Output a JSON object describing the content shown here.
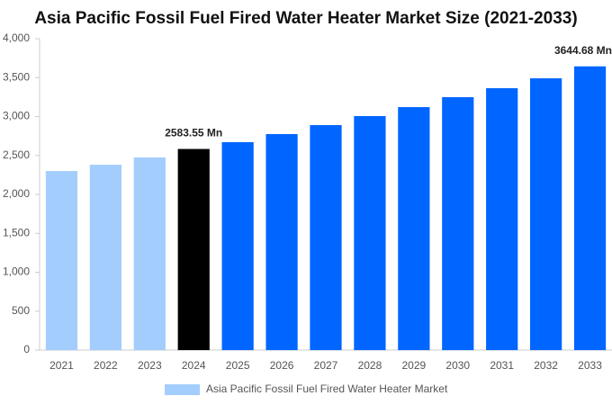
{
  "chart_data": {
    "type": "bar",
    "title": "Asia Pacific Fossil Fuel Fired Water Heater Market Size (2021-2033)",
    "categories": [
      "2021",
      "2022",
      "2023",
      "2024",
      "2025",
      "2026",
      "2027",
      "2028",
      "2029",
      "2030",
      "2031",
      "2032",
      "2033"
    ],
    "series": [
      {
        "name": "Asia Pacific Fossil Fuel Fired Water Heater Market",
        "color": "#a3cdfd",
        "values": [
          2300,
          2381,
          2474,
          2583.55,
          2671,
          2775,
          2890,
          3006,
          3121,
          3249,
          3364,
          3491,
          3644.68
        ],
        "colors": [
          "#a3cdfd",
          "#a3cdfd",
          "#a3cdfd",
          "#000000",
          "#0066ff",
          "#0066ff",
          "#0066ff",
          "#0066ff",
          "#0066ff",
          "#0066ff",
          "#0066ff",
          "#0066ff",
          "#0066ff"
        ],
        "value_labels": [
          null,
          null,
          null,
          "2583.55 Mn",
          null,
          null,
          null,
          null,
          null,
          null,
          null,
          null,
          "3644.68 Mn"
        ]
      }
    ],
    "ylim": [
      0,
      4000
    ],
    "yticks": [
      0,
      500,
      {
        "value": 1000,
        "label": "1,000"
      },
      {
        "value": 1500,
        "label": "1,500"
      },
      {
        "value": 2000,
        "label": "2,000"
      },
      {
        "value": 2500,
        "label": "2,500"
      },
      {
        "value": 3000,
        "label": "3,000"
      },
      {
        "value": 3500,
        "label": "3,500"
      },
      {
        "value": 4000,
        "label": "4,000"
      }
    ],
    "grid": false,
    "legend": "bottom"
  }
}
